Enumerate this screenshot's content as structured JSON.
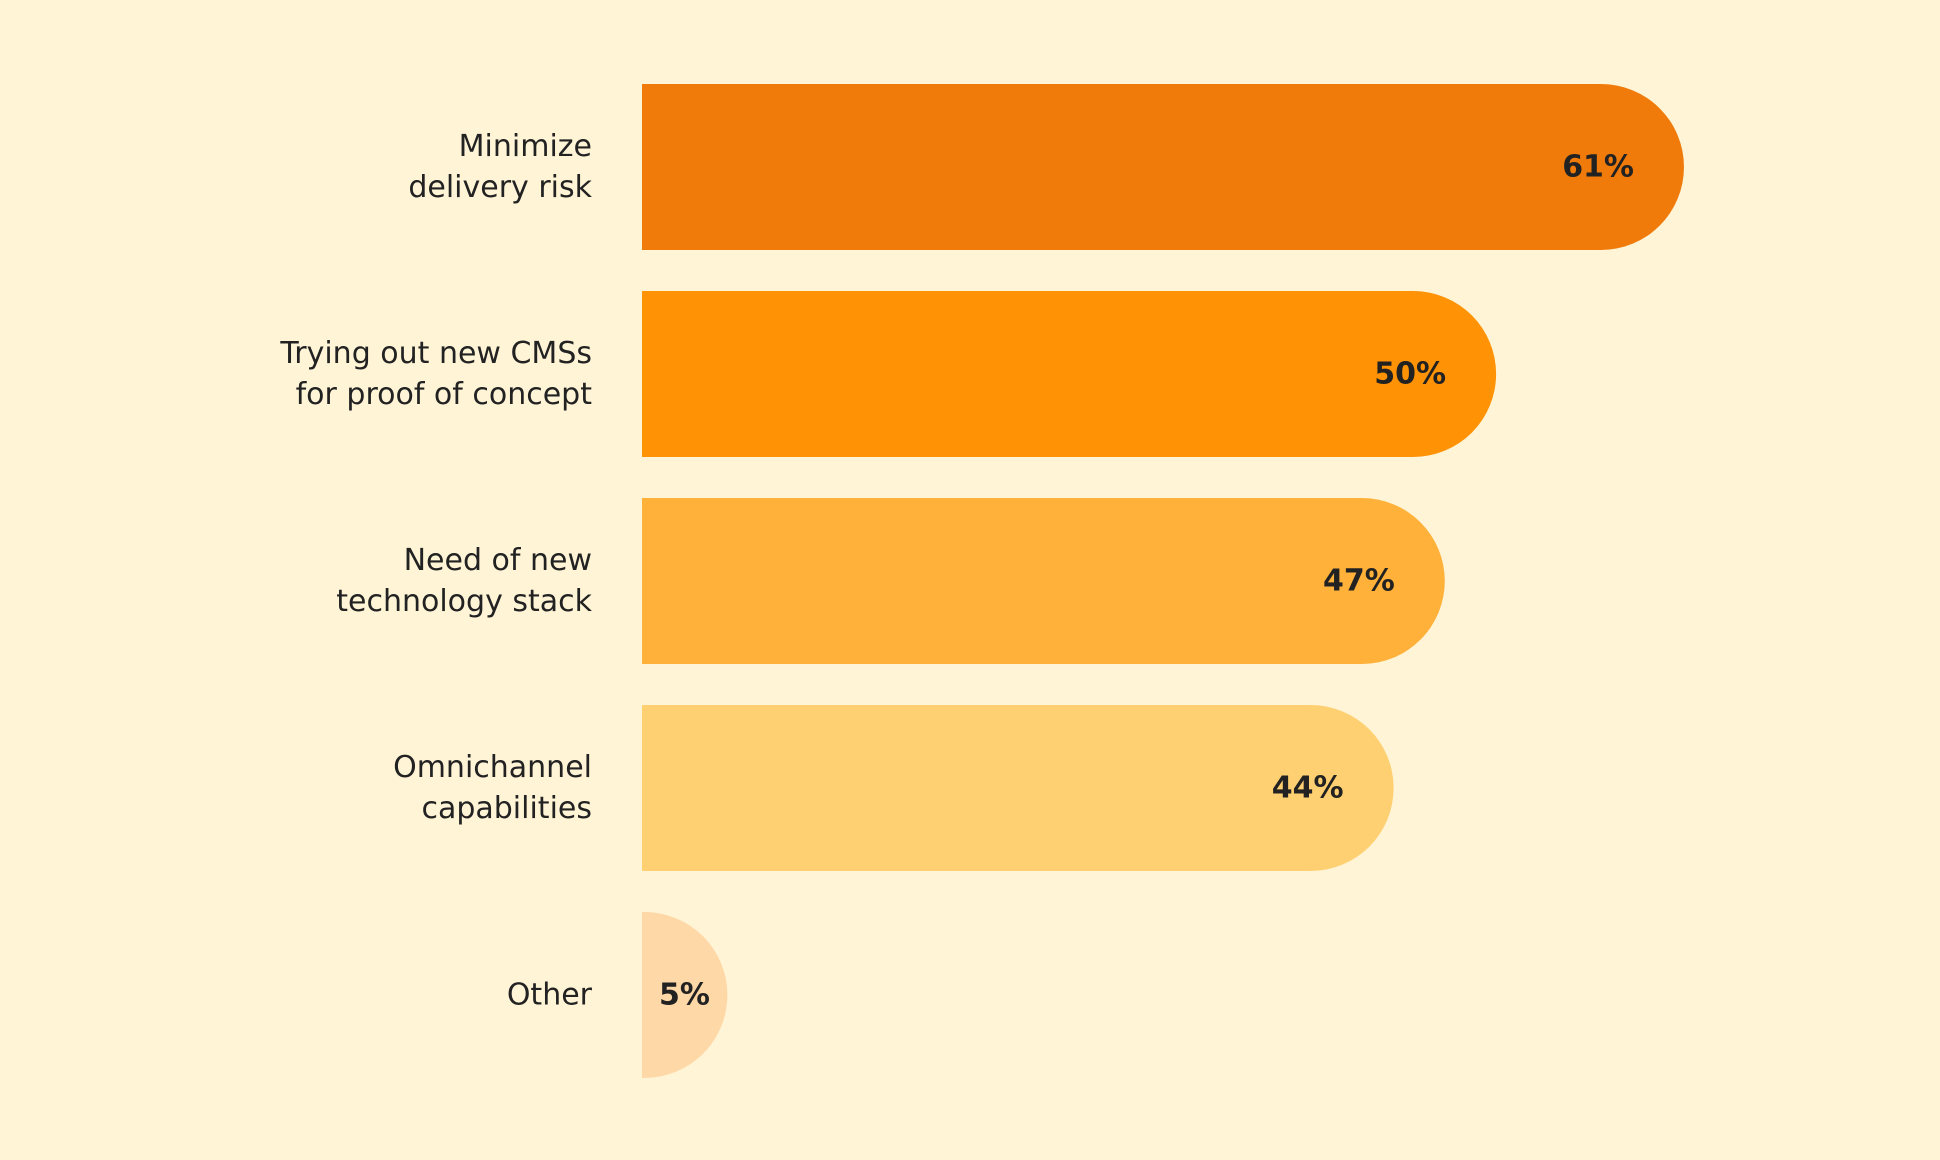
{
  "chart_data": {
    "type": "bar",
    "orientation": "horizontal",
    "title": "",
    "xlabel": "",
    "ylabel": "",
    "grid": false,
    "legend": "none",
    "categories": [
      [
        "Minimize",
        "delivery risk"
      ],
      [
        "Trying out new CMSs",
        "for proof of concept"
      ],
      [
        "Need of new",
        "technology stack"
      ],
      [
        "Omnichannel",
        "capabilities"
      ],
      [
        "Other"
      ]
    ],
    "values": [
      61,
      50,
      47,
      44,
      5
    ],
    "value_labels": [
      "61%",
      "50%",
      "47%",
      "44%",
      "5%"
    ],
    "colors": [
      "#F07B0A",
      "#FF9205",
      "#FFB13A",
      "#FFD071",
      "#FFD8A8"
    ],
    "xlim": [
      0,
      61
    ]
  }
}
